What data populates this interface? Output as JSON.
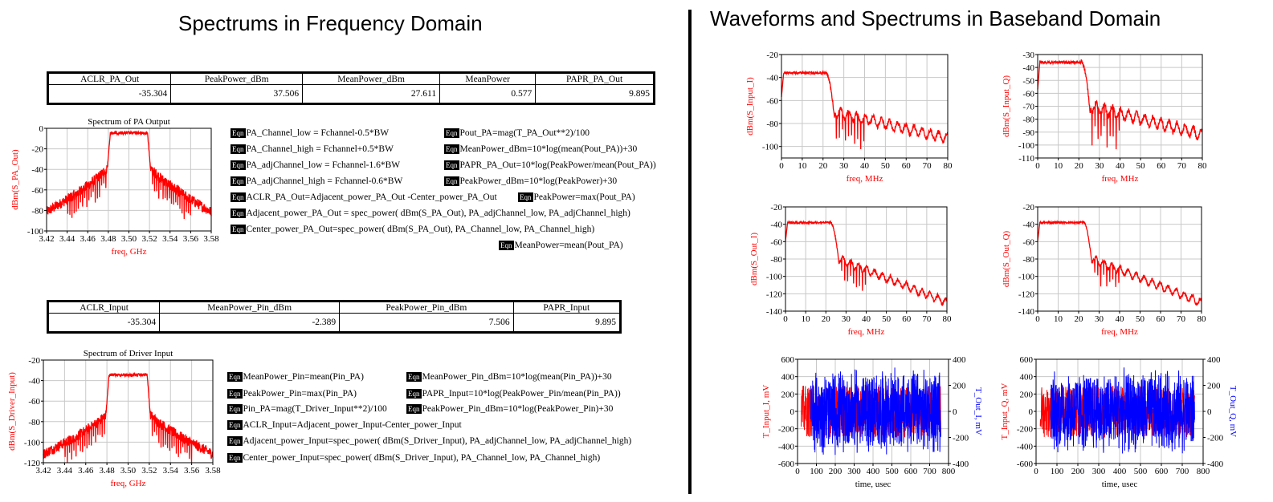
{
  "titles": {
    "left": "Spectrums in Frequency Domain",
    "right": "Waveforms and Spectrums in Baseband Domain"
  },
  "tables": {
    "pa": {
      "headers": [
        "ACLR_PA_Out",
        "PeakPower_dBm",
        "MeanPower_dBm",
        "MeanPower",
        "PAPR_PA_Out"
      ],
      "values": [
        "-35.304",
        "37.506",
        "27.611",
        "0.577",
        "9.895"
      ]
    },
    "input": {
      "headers": [
        "ACLR_Input",
        "MeanPower_Pin_dBm",
        "PeakPower_Pin_dBm",
        "PAPR_Input"
      ],
      "values": [
        "-35.304",
        "-2.389",
        "7.506",
        "9.895"
      ]
    }
  },
  "equations": {
    "tag": "Eqn",
    "pa": [
      "PA_Channel_low = Fchannel-0.5*BW",
      "PA_Channel_high = Fchannel+0.5*BW",
      "PA_adjChannel_low = Fchannel-1.6*BW",
      "PA_adjChannel_high = Fchannel-0.6*BW",
      "ACLR_PA_Out=Adjacent_power_PA_Out -Center_power_PA_Out",
      "Adjacent_power_PA_Out = spec_power( dBm(S_PA_Out), PA_adjChannel_low, PA_adjChannel_high)",
      "Center_power_PA_Out=spec_power( dBm(S_PA_Out), PA_Channel_low, PA_Channel_high)",
      "Pout_PA=mag(T_PA_Out**2)/100",
      "MeanPower_dBm=10*log(mean(Pout_PA))+30",
      "PAPR_PA_Out=10*log(PeakPower/mean(Pout_PA))",
      "PeakPower_dBm=10*log(PeakPower)+30",
      "PeakPower=max(Pout_PA)",
      "MeanPower=mean(Pout_PA)"
    ],
    "input": [
      "MeanPower_Pin=mean(Pin_PA)",
      "PeakPower_Pin=max(Pin_PA)",
      "Pin_PA=mag(T_Driver_Input**2)/100",
      "ACLR_Input=Adjacent_power_Input-Center_power_Input",
      "Adjacent_power_Input=spec_power( dBm(S_Driver_Input), PA_adjChannel_low, PA_adjChannel_high)",
      "Center_power_Input=spec_power( dBm(S_Driver_Input), PA_Channel_low, PA_Channel_high)",
      "MeanPower_Pin_dBm=10*log(mean(Pin_PA))+30",
      "PAPR_Input=10*log(PeakPower_Pin/mean(Pin_PA))",
      "PeakPower_Pin_dBm=10*log(PeakPower_Pin)+30"
    ]
  },
  "colors": {
    "trace": "#ff0000",
    "trace2": "#0000ff",
    "grid": "#c8c8c8",
    "axis_label": "#ff0000"
  },
  "chart_data": [
    {
      "id": "pa_out",
      "type": "line",
      "title": "Spectrum of PA Output",
      "xlabel": "freq, GHz",
      "ylabel": "dBm(S_PA_Out)",
      "xlim": [
        3.42,
        3.58
      ],
      "ylim": [
        -100,
        0
      ],
      "xticks": [
        3.42,
        3.44,
        3.46,
        3.48,
        3.5,
        3.52,
        3.54,
        3.56,
        3.58
      ],
      "xtick_labels": [
        "3.42",
        "3.44",
        "3.46",
        "3.48",
        "3.50",
        "3.52",
        "3.54",
        "3.56",
        "3.58"
      ],
      "yticks": [
        -100,
        -80,
        -60,
        -40,
        -20,
        0
      ],
      "ytick_labels": [
        "-100",
        "-80",
        "-60",
        "-40",
        "-20",
        "0"
      ],
      "shape": {
        "kind": "spectrum_ghz",
        "fc": 3.5,
        "bw": 0.04,
        "inband": -3,
        "edge": -38,
        "floor_far": -82,
        "ripple": 3
      }
    },
    {
      "id": "driver_in",
      "type": "line",
      "title": "Spectrum of Driver Input",
      "xlabel": "freq, GHz",
      "ylabel": "dBm(S_Driver_Input)",
      "xlim": [
        3.42,
        3.58
      ],
      "ylim": [
        -120,
        -20
      ],
      "xticks": [
        3.42,
        3.44,
        3.46,
        3.48,
        3.5,
        3.52,
        3.54,
        3.56,
        3.58
      ],
      "xtick_labels": [
        "3.42",
        "3.44",
        "3.46",
        "3.48",
        "3.50",
        "3.52",
        "3.54",
        "3.56",
        "3.58"
      ],
      "yticks": [
        -120,
        -100,
        -80,
        -60,
        -40,
        -20
      ],
      "ytick_labels": [
        "-120",
        "-100",
        "-80",
        "-60",
        "-40",
        "-20"
      ],
      "shape": {
        "kind": "spectrum_ghz",
        "fc": 3.5,
        "bw": 0.04,
        "inband": -33,
        "edge": -73,
        "floor_far": -112,
        "ripple": 3
      }
    },
    {
      "id": "s_input_i",
      "type": "line",
      "title": "",
      "xlabel": "freq, MHz",
      "ylabel": "dBm(S_Input_I)",
      "xlim": [
        0,
        80
      ],
      "ylim": [
        -110,
        -20
      ],
      "xticks": [
        0,
        10,
        20,
        30,
        40,
        50,
        60,
        70,
        80
      ],
      "xtick_labels": [
        "0",
        "10",
        "20",
        "30",
        "40",
        "50",
        "60",
        "70",
        "80"
      ],
      "yticks": [
        -100,
        -80,
        -60,
        -40,
        -20
      ],
      "ytick_labels": [
        "-100",
        "-80",
        "-60",
        "-40",
        "-20"
      ],
      "shape": {
        "kind": "baseband",
        "inband": -35,
        "edge_at": 24,
        "floor_start": -70,
        "floor_end": -93,
        "ripple": 4
      }
    },
    {
      "id": "s_input_q",
      "type": "line",
      "title": "",
      "xlabel": "freq, MHz",
      "ylabel": "dBm(S_Input_Q)",
      "xlim": [
        0,
        80
      ],
      "ylim": [
        -110,
        -30
      ],
      "xticks": [
        0,
        10,
        20,
        30,
        40,
        50,
        60,
        70,
        80
      ],
      "xtick_labels": [
        "0",
        "10",
        "20",
        "30",
        "40",
        "50",
        "60",
        "70",
        "80"
      ],
      "yticks": [
        -110,
        -100,
        -90,
        -80,
        -70,
        -60,
        -50,
        -40,
        -30
      ],
      "ytick_labels": [
        "-110",
        "-100",
        "-90",
        "-80",
        "-70",
        "-60",
        "-50",
        "-40",
        "-30"
      ],
      "shape": {
        "kind": "baseband",
        "inband": -35,
        "edge_at": 24,
        "floor_start": -70,
        "floor_end": -92,
        "ripple": 4
      }
    },
    {
      "id": "s_out_i",
      "type": "line",
      "title": "",
      "xlabel": "freq, MHz",
      "ylabel": "dBm(S_Out_I)",
      "xlim": [
        0,
        80
      ],
      "ylim": [
        -140,
        -20
      ],
      "xticks": [
        0,
        10,
        20,
        30,
        40,
        50,
        60,
        70,
        80
      ],
      "xtick_labels": [
        "0",
        "10",
        "20",
        "30",
        "40",
        "50",
        "60",
        "70",
        "80"
      ],
      "yticks": [
        -140,
        -120,
        -100,
        -80,
        -60,
        -40,
        -20
      ],
      "ytick_labels": [
        "-140",
        "-120",
        "-100",
        "-80",
        "-60",
        "-40",
        "-20"
      ],
      "shape": {
        "kind": "baseband",
        "inband": -37,
        "edge_at": 25,
        "floor_start": -80,
        "floor_end": -130,
        "ripple": 4
      }
    },
    {
      "id": "s_out_q",
      "type": "line",
      "title": "",
      "xlabel": "freq, MHz",
      "ylabel": "dBm(S_Out_Q)",
      "xlim": [
        0,
        80
      ],
      "ylim": [
        -140,
        -20
      ],
      "xticks": [
        0,
        10,
        20,
        30,
        40,
        50,
        60,
        70,
        80
      ],
      "xtick_labels": [
        "0",
        "10",
        "20",
        "30",
        "40",
        "50",
        "60",
        "70",
        "80"
      ],
      "yticks": [
        -140,
        -120,
        -100,
        -80,
        -60,
        -40,
        -20
      ],
      "ytick_labels": [
        "-140",
        "-120",
        "-100",
        "-80",
        "-60",
        "-40",
        "-20"
      ],
      "shape": {
        "kind": "baseband",
        "inband": -37,
        "edge_at": 25,
        "floor_start": -80,
        "floor_end": -130,
        "ripple": 4
      }
    },
    {
      "id": "t_i",
      "type": "line",
      "title": "",
      "xlabel": "time, usec",
      "ylabel": "T_Input_I, mV",
      "ylabel2": "T_Out_I, mV",
      "xlim": [
        0,
        800
      ],
      "ylim": [
        -600,
        600
      ],
      "ylim2": [
        -400,
        400
      ],
      "xticks": [
        0,
        100,
        200,
        300,
        400,
        500,
        600,
        700,
        800
      ],
      "xtick_labels": [
        "0",
        "100",
        "200",
        "300",
        "400",
        "500",
        "600",
        "700",
        "800"
      ],
      "yticks": [
        -600,
        -400,
        -200,
        0,
        200,
        400,
        600
      ],
      "ytick_labels": [
        "-600",
        "-400",
        "-200",
        "0",
        "200",
        "400",
        "600"
      ],
      "yticks2": [
        -400,
        -200,
        0,
        200,
        400
      ],
      "ytick_labels2": [
        "-400",
        "-200",
        "0",
        "200",
        "400"
      ],
      "shape": {
        "kind": "time",
        "start": 20,
        "blue_start": 70,
        "end": 760,
        "red_amp": 300,
        "blue_amp": 340
      }
    },
    {
      "id": "t_q",
      "type": "line",
      "title": "",
      "xlabel": "time, usec",
      "ylabel": "T_Input_Q, mV",
      "ylabel2": "T_Out_Q, mV",
      "xlim": [
        0,
        800
      ],
      "ylim": [
        -600,
        600
      ],
      "ylim2": [
        -400,
        400
      ],
      "xticks": [
        0,
        100,
        200,
        300,
        400,
        500,
        600,
        700,
        800
      ],
      "xtick_labels": [
        "0",
        "100",
        "200",
        "300",
        "400",
        "500",
        "600",
        "700",
        "800"
      ],
      "yticks": [
        -600,
        -400,
        -200,
        0,
        200,
        400,
        600
      ],
      "ytick_labels": [
        "-600",
        "-400",
        "-200",
        "0",
        "200",
        "400",
        "600"
      ],
      "yticks2": [
        -400,
        -200,
        0,
        200,
        400
      ],
      "ytick_labels2": [
        "-400",
        "-200",
        "0",
        "200",
        "400"
      ],
      "shape": {
        "kind": "time",
        "start": 20,
        "blue_start": 70,
        "end": 760,
        "red_amp": 300,
        "blue_amp": 340
      }
    }
  ]
}
